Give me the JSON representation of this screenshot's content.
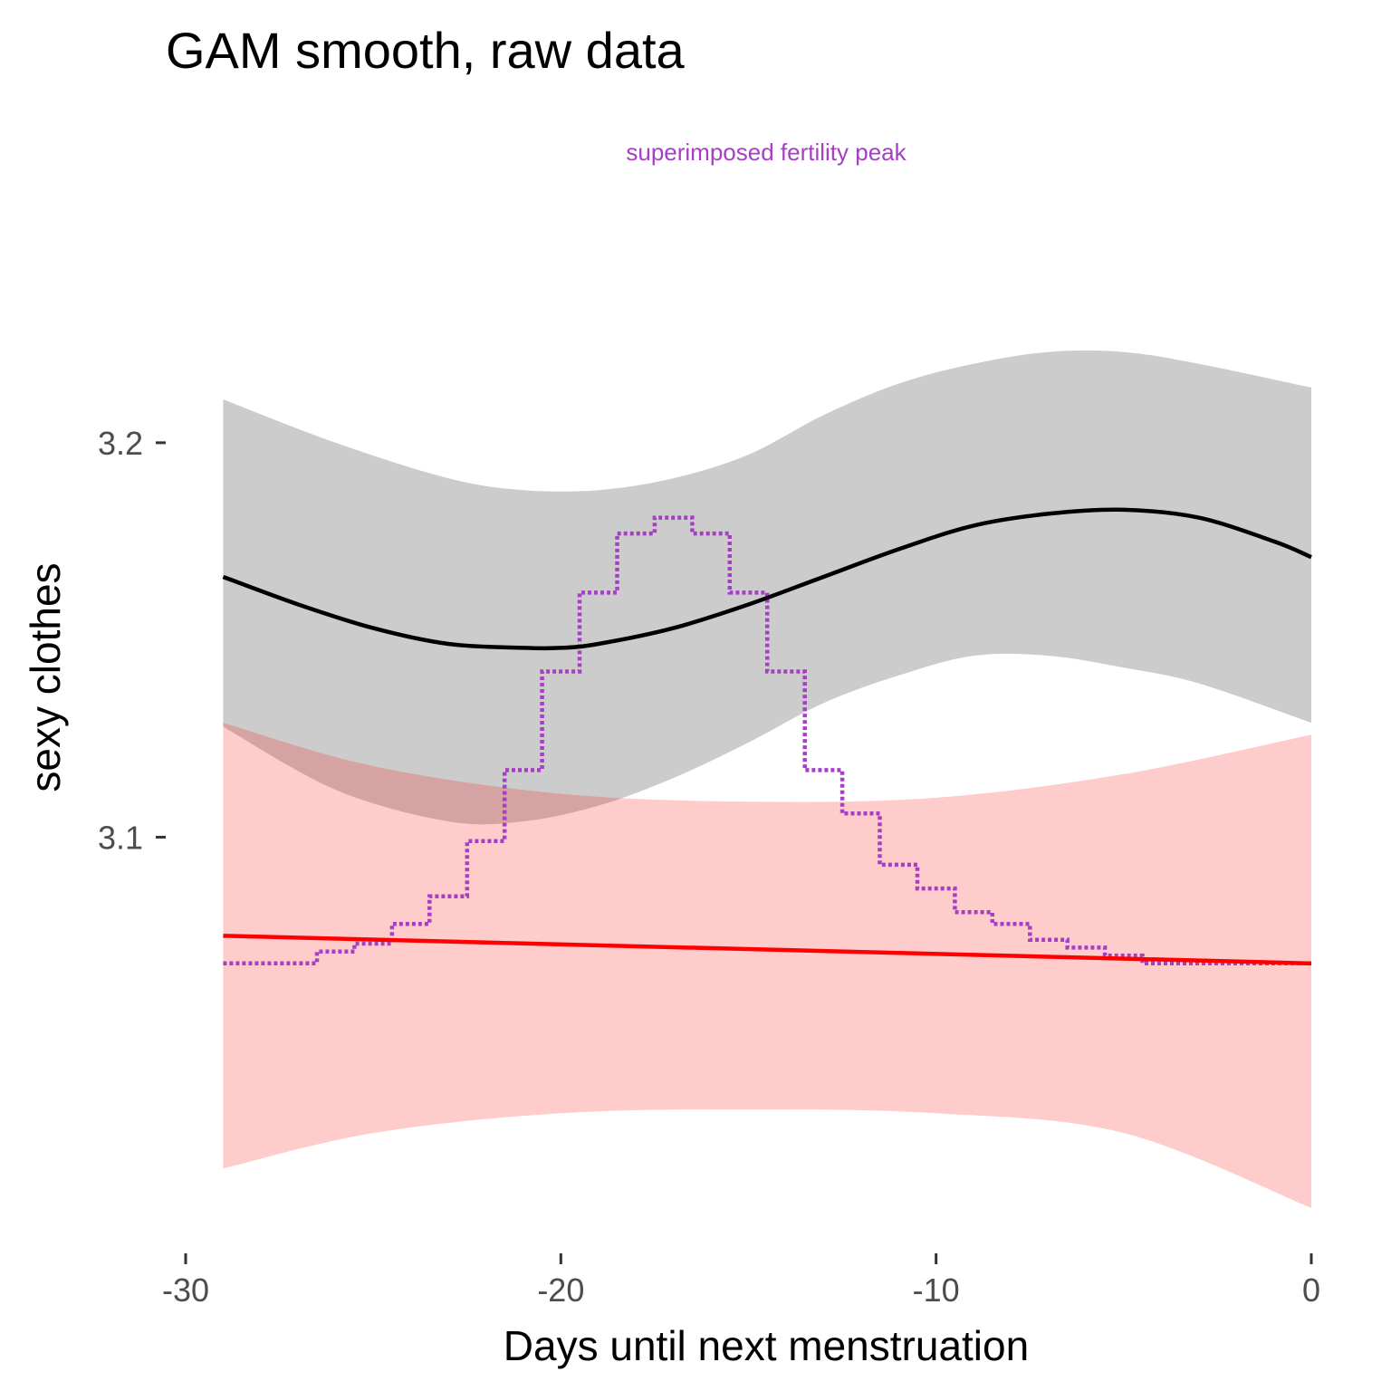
{
  "chart_data": {
    "type": "line",
    "title": "GAM smooth, raw data",
    "annotation": "superimposed fertility peak",
    "xlabel": "Days until next menstruation",
    "ylabel": "sexy clothes",
    "xlim": [
      -30,
      0
    ],
    "ylim": [
      3.0,
      3.225
    ],
    "x_ticks": [
      -30,
      -20,
      -10,
      0
    ],
    "x_tick_labels": [
      "-30",
      "-20",
      "-10",
      "0"
    ],
    "y_ticks": [
      3.1,
      3.2
    ],
    "y_tick_labels": [
      "3.1",
      "3.2"
    ],
    "grid": false,
    "legend": "none",
    "colors": {
      "gam_line": "#000000",
      "gam_band": "#cccccc",
      "linear_line": "#ff0000",
      "linear_band": "#fccccc",
      "fertility": "#a63fc4",
      "tick_text": "#4d4d4d"
    },
    "series": [
      {
        "kind": "ribbon",
        "x": [
          -29,
          -26,
          -23,
          -21,
          -19,
          -17,
          -15,
          -13,
          -11,
          -9,
          -7,
          -5,
          -3,
          0
        ],
        "upper": [
          3.211,
          3.2,
          3.191,
          3.188,
          3.188,
          3.191,
          3.197,
          3.207,
          3.215,
          3.22,
          3.223,
          3.223,
          3.22,
          3.214
        ],
        "lower": [
          3.128,
          3.112,
          3.104,
          3.104,
          3.108,
          3.115,
          3.124,
          3.134,
          3.141,
          3.146,
          3.146,
          3.143,
          3.139,
          3.129
        ]
      },
      {
        "kind": "ribbon",
        "x": [
          -29,
          -25,
          -20,
          -15,
          -10,
          -5,
          0
        ],
        "upper": [
          3.129,
          3.118,
          3.111,
          3.109,
          3.11,
          3.116,
          3.126
        ],
        "lower": [
          3.016,
          3.025,
          3.03,
          3.031,
          3.03,
          3.025,
          3.006
        ]
      },
      {
        "kind": "line",
        "x": [
          -29,
          -27,
          -25,
          -23,
          -21,
          -20,
          -19,
          -17,
          -15,
          -13,
          -11,
          -9,
          -7,
          -5,
          -3,
          -1,
          0
        ],
        "y": [
          3.166,
          3.159,
          3.153,
          3.149,
          3.148,
          3.148,
          3.149,
          3.153,
          3.159,
          3.166,
          3.173,
          3.179,
          3.182,
          3.183,
          3.181,
          3.175,
          3.171
        ]
      },
      {
        "kind": "line",
        "x": [
          -29,
          0
        ],
        "y": [
          3.075,
          3.068
        ]
      },
      {
        "kind": "step",
        "x": [
          -29,
          -28,
          -27,
          -26,
          -25,
          -24,
          -23,
          -22,
          -21,
          -20,
          -19,
          -18,
          -17,
          -16,
          -15,
          -14,
          -13,
          -12,
          -11,
          -10,
          -9,
          -8,
          -7,
          -6,
          -5,
          -4,
          -3,
          -2,
          -1,
          0
        ],
        "y": [
          3.068,
          3.068,
          3.068,
          3.071,
          3.073,
          3.078,
          3.085,
          3.099,
          3.117,
          3.142,
          3.162,
          3.177,
          3.181,
          3.177,
          3.162,
          3.142,
          3.117,
          3.106,
          3.093,
          3.087,
          3.081,
          3.078,
          3.074,
          3.072,
          3.07,
          3.068,
          3.068,
          3.068,
          3.068,
          3.068
        ]
      }
    ]
  }
}
